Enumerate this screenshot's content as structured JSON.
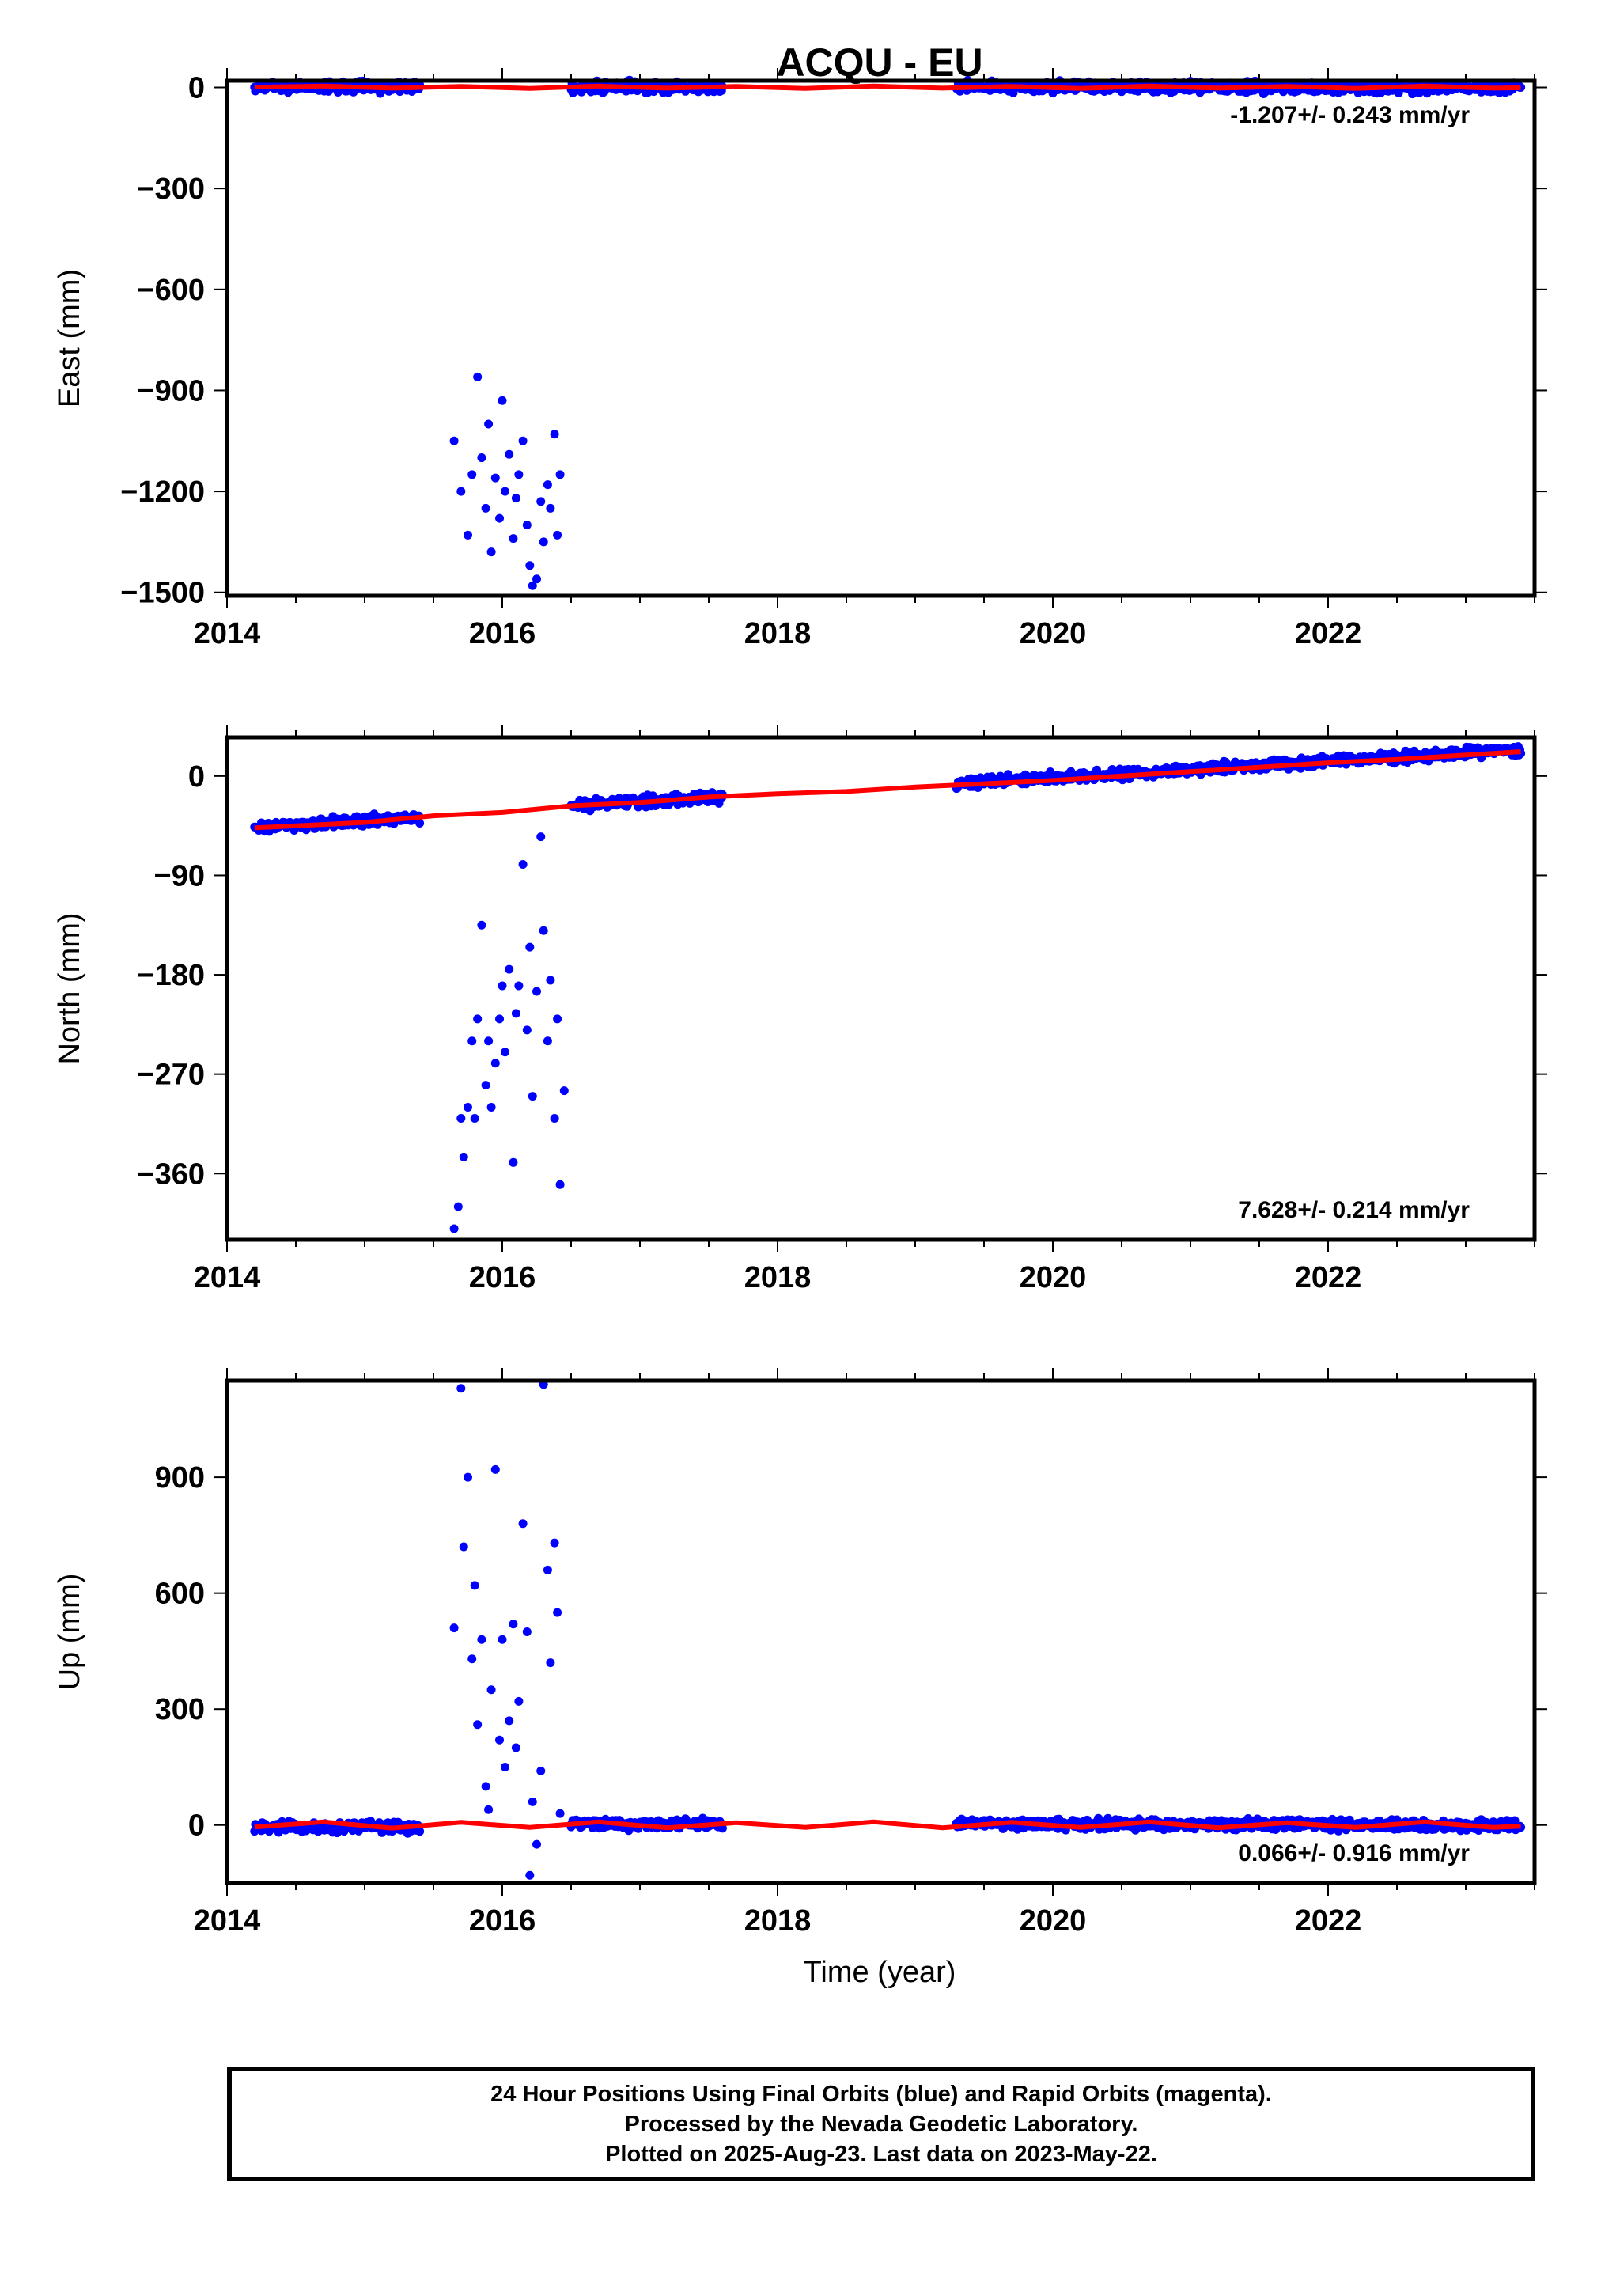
{
  "title": "ACQU - EU",
  "xlabel": "Time (year)",
  "footer": {
    "lines": [
      "24 Hour Positions Using Final Orbits (blue) and Rapid Orbits (magenta).",
      "Processed by the Nevada Geodetic Laboratory.",
      "Plotted on 2025-Aug-23. Last data on 2023-May-22."
    ]
  },
  "colors": {
    "points": "#0000ff",
    "fit": "#ff0000",
    "axis": "#000000"
  },
  "chart_data": [
    {
      "type": "scatter",
      "panel": "east",
      "ylabel": "East (mm)",
      "xlim": [
        2014,
        2023.5
      ],
      "ylim": [
        -1510,
        20
      ],
      "xticks": [
        2014,
        2016,
        2018,
        2020,
        2022
      ],
      "yticks": [
        0,
        -300,
        -600,
        -900,
        -1200,
        -1500
      ],
      "rate_label": "-1.207+/- 0.243 mm/yr",
      "dense_segments": [
        {
          "x": [
            2014.2,
            2015.4
          ],
          "y": [
            2,
            2
          ]
        },
        {
          "x": [
            2016.5,
            2017.6
          ],
          "y": [
            2,
            -1
          ]
        },
        {
          "x": [
            2019.3,
            2023.4
          ],
          "y": [
            2,
            -1
          ]
        }
      ],
      "points": [
        [
          2015.65,
          -1050
        ],
        [
          2015.7,
          -1200
        ],
        [
          2015.75,
          -1330
        ],
        [
          2015.78,
          -1150
        ],
        [
          2015.82,
          -860
        ],
        [
          2015.85,
          -1100
        ],
        [
          2015.88,
          -1250
        ],
        [
          2015.9,
          -1000
        ],
        [
          2015.92,
          -1380
        ],
        [
          2015.95,
          -1160
        ],
        [
          2015.98,
          -1280
        ],
        [
          2016.0,
          -930
        ],
        [
          2016.02,
          -1200
        ],
        [
          2016.05,
          -1090
        ],
        [
          2016.08,
          -1340
        ],
        [
          2016.1,
          -1220
        ],
        [
          2016.12,
          -1150
        ],
        [
          2016.15,
          -1050
        ],
        [
          2016.18,
          -1300
        ],
        [
          2016.2,
          -1420
        ],
        [
          2016.22,
          -1480
        ],
        [
          2016.25,
          -1460
        ],
        [
          2016.28,
          -1230
        ],
        [
          2016.3,
          -1350
        ],
        [
          2016.33,
          -1180
        ],
        [
          2016.35,
          -1250
        ],
        [
          2016.38,
          -1030
        ],
        [
          2016.4,
          -1330
        ],
        [
          2016.42,
          -1150
        ]
      ],
      "fit": {
        "x": [
          2014.2,
          2014.7,
          2015.2,
          2015.7,
          2016.2,
          2016.7,
          2017.2,
          2017.7,
          2018.2,
          2018.7,
          2019.2,
          2019.7,
          2020.2,
          2020.7,
          2021.2,
          2021.7,
          2022.2,
          2022.7,
          2023.2,
          2023.4
        ],
        "y": [
          1,
          4,
          -2,
          3,
          -3,
          4,
          -2,
          3,
          -3,
          4,
          -2,
          3,
          -3,
          4,
          -2,
          3,
          -3,
          4,
          -2,
          -1
        ]
      }
    },
    {
      "type": "scatter",
      "panel": "north",
      "ylabel": "North (mm)",
      "xlim": [
        2014,
        2023.5
      ],
      "ylim": [
        -420,
        35
      ],
      "xticks": [
        2014,
        2016,
        2018,
        2020,
        2022
      ],
      "yticks": [
        0,
        -90,
        -180,
        -270,
        -360
      ],
      "rate_label": "7.628+/- 0.214 mm/yr",
      "dense_segments": [
        {
          "x": [
            2014.2,
            2015.4
          ],
          "y": [
            -47,
            -37
          ]
        },
        {
          "x": [
            2016.5,
            2017.6
          ],
          "y": [
            -27,
            -19
          ]
        },
        {
          "x": [
            2019.3,
            2023.4
          ],
          "y": [
            -7,
            24
          ]
        }
      ],
      "points": [
        [
          2015.65,
          -410
        ],
        [
          2015.68,
          -390
        ],
        [
          2015.7,
          -310
        ],
        [
          2015.72,
          -345
        ],
        [
          2015.75,
          -300
        ],
        [
          2015.78,
          -240
        ],
        [
          2015.8,
          -310
        ],
        [
          2015.82,
          -220
        ],
        [
          2015.85,
          -135
        ],
        [
          2015.88,
          -280
        ],
        [
          2015.9,
          -240
        ],
        [
          2015.92,
          -300
        ],
        [
          2015.95,
          -260
        ],
        [
          2015.98,
          -220
        ],
        [
          2016.0,
          -190
        ],
        [
          2016.02,
          -250
        ],
        [
          2016.05,
          -175
        ],
        [
          2016.08,
          -350
        ],
        [
          2016.1,
          -215
        ],
        [
          2016.12,
          -190
        ],
        [
          2016.15,
          -80
        ],
        [
          2016.18,
          -230
        ],
        [
          2016.2,
          -155
        ],
        [
          2016.22,
          -290
        ],
        [
          2016.25,
          -195
        ],
        [
          2016.28,
          -55
        ],
        [
          2016.3,
          -140
        ],
        [
          2016.33,
          -240
        ],
        [
          2016.35,
          -185
        ],
        [
          2016.38,
          -310
        ],
        [
          2016.4,
          -220
        ],
        [
          2016.42,
          -370
        ],
        [
          2016.45,
          -285
        ]
      ],
      "fit": {
        "x": [
          2014.2,
          2015.0,
          2015.5,
          2016.0,
          2016.5,
          2017.0,
          2017.5,
          2018.0,
          2018.5,
          2019.0,
          2019.5,
          2020.0,
          2020.5,
          2021.0,
          2021.5,
          2022.0,
          2022.5,
          2023.0,
          2023.4
        ],
        "y": [
          -47,
          -42,
          -36,
          -33,
          -27,
          -24,
          -19,
          -16,
          -14,
          -10,
          -7,
          -4,
          0,
          4,
          8,
          12,
          15,
          19,
          22
        ]
      }
    },
    {
      "type": "scatter",
      "panel": "up",
      "ylabel": "Up (mm)",
      "xlim": [
        2014,
        2023.5
      ],
      "ylim": [
        -150,
        1150
      ],
      "xticks": [
        2014,
        2016,
        2018,
        2020,
        2022
      ],
      "yticks": [
        900,
        600,
        300,
        0
      ],
      "rate_label": "0.066+/- 0.916 mm/yr",
      "dense_segments": [
        {
          "x": [
            2014.2,
            2015.4
          ],
          "y": [
            -5,
            -5
          ]
        },
        {
          "x": [
            2016.5,
            2017.6
          ],
          "y": [
            2,
            2
          ]
        },
        {
          "x": [
            2019.3,
            2023.4
          ],
          "y": [
            5,
            -2
          ]
        }
      ],
      "points": [
        [
          2015.65,
          510
        ],
        [
          2015.7,
          1130
        ],
        [
          2015.72,
          720
        ],
        [
          2015.75,
          900
        ],
        [
          2015.78,
          430
        ],
        [
          2015.8,
          620
        ],
        [
          2015.82,
          260
        ],
        [
          2015.85,
          480
        ],
        [
          2015.88,
          100
        ],
        [
          2015.9,
          40
        ],
        [
          2015.92,
          350
        ],
        [
          2015.95,
          920
        ],
        [
          2015.98,
          220
        ],
        [
          2016.0,
          480
        ],
        [
          2016.02,
          150
        ],
        [
          2016.05,
          270
        ],
        [
          2016.08,
          520
        ],
        [
          2016.1,
          200
        ],
        [
          2016.12,
          320
        ],
        [
          2016.15,
          780
        ],
        [
          2016.18,
          500
        ],
        [
          2016.2,
          -130
        ],
        [
          2016.22,
          60
        ],
        [
          2016.25,
          -50
        ],
        [
          2016.28,
          140
        ],
        [
          2016.3,
          1140
        ],
        [
          2016.33,
          660
        ],
        [
          2016.35,
          420
        ],
        [
          2016.38,
          730
        ],
        [
          2016.4,
          550
        ],
        [
          2016.42,
          30
        ]
      ],
      "fit": {
        "x": [
          2014.2,
          2014.7,
          2015.2,
          2015.7,
          2016.2,
          2016.7,
          2017.2,
          2017.7,
          2018.2,
          2018.7,
          2019.2,
          2019.7,
          2020.2,
          2020.7,
          2021.2,
          2021.7,
          2022.2,
          2022.7,
          2023.2,
          2023.4
        ],
        "y": [
          -5,
          8,
          -8,
          7,
          -6,
          8,
          -7,
          6,
          -6,
          8,
          -7,
          7,
          -6,
          8,
          -7,
          6,
          -6,
          8,
          -6,
          -3
        ]
      }
    }
  ]
}
